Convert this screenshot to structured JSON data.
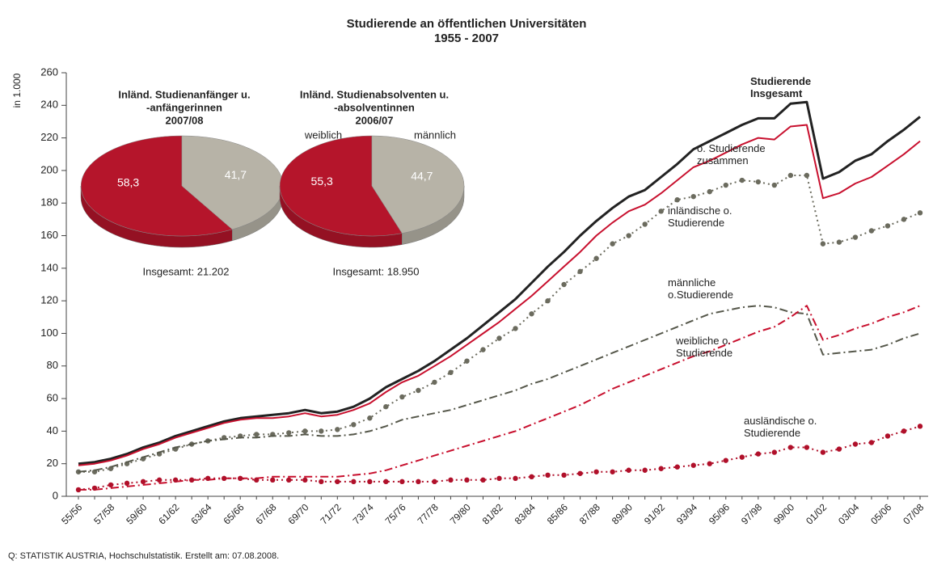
{
  "source": "Q: STATISTIK AUSTRIA, Hochschulstatistik. Erstellt am: 07.08.2008.",
  "chart_data": [
    {
      "type": "line",
      "title": "Studierende an öffentlichen Universitäten",
      "subtitle": "1955 - 2007",
      "y_label": "in 1.000",
      "categories": [
        "55/56",
        null,
        "57/58",
        null,
        "59/60",
        null,
        "61/62",
        null,
        "63/64",
        null,
        "65/66",
        null,
        "67/68",
        null,
        "69/70",
        null,
        "71/72",
        null,
        "73/74",
        null,
        "75/76",
        null,
        "77/78",
        null,
        "79/80",
        null,
        "81/82",
        null,
        "83/84",
        null,
        "85/86",
        null,
        "87/88",
        null,
        "89/90",
        null,
        "91/92",
        null,
        "93/94",
        null,
        "95/96",
        null,
        "97/98",
        null,
        "99/00",
        null,
        "01/02",
        null,
        "03/04",
        null,
        "05/06",
        null,
        "07/08"
      ],
      "ylim": [
        0,
        260
      ],
      "yticks": [
        0,
        20,
        40,
        60,
        80,
        100,
        120,
        140,
        160,
        180,
        200,
        220,
        240,
        260
      ],
      "grid": false,
      "series": [
        {
          "name": "Studierende Insgesamt",
          "color": "#222222",
          "style": "solid",
          "values": [
            20,
            21,
            23,
            26,
            30,
            33,
            37,
            40,
            43,
            46,
            48,
            49,
            50,
            51,
            53,
            51,
            52,
            55,
            60,
            67,
            72,
            77,
            83,
            90,
            97,
            105,
            113,
            121,
            131,
            141,
            150,
            160,
            169,
            177,
            184,
            188,
            196,
            204,
            213,
            218,
            223,
            228,
            232,
            232,
            241,
            242,
            195,
            199,
            206,
            210,
            218,
            225,
            233
          ]
        },
        {
          "name": "o. Studierende zusammen",
          "color": "#c8102e",
          "style": "solid",
          "values": [
            19,
            20,
            22,
            25,
            29,
            32,
            36,
            39,
            42,
            45,
            47,
            48,
            48,
            49,
            51,
            49,
            50,
            53,
            57,
            64,
            70,
            74,
            80,
            86,
            93,
            100,
            107,
            115,
            123,
            132,
            141,
            150,
            160,
            168,
            175,
            179,
            186,
            194,
            202,
            206,
            211,
            216,
            220,
            219,
            227,
            228,
            183,
            186,
            192,
            196,
            203,
            210,
            218
          ]
        },
        {
          "name": "inländische o. Studierende",
          "color": "#6b6b5e",
          "style": "dotted",
          "values": [
            15,
            15,
            17,
            20,
            23,
            26,
            29,
            32,
            34,
            36,
            37,
            38,
            38,
            39,
            40,
            40,
            41,
            44,
            48,
            55,
            61,
            65,
            70,
            76,
            83,
            90,
            97,
            103,
            112,
            120,
            130,
            138,
            146,
            155,
            160,
            167,
            175,
            182,
            184,
            187,
            191,
            194,
            193,
            191,
            197,
            197,
            155,
            156,
            159,
            163,
            166,
            170,
            174
          ]
        },
        {
          "name": "männliche o.Studierende",
          "color": "#55574a",
          "style": "dashdot",
          "values": [
            15,
            16,
            18,
            21,
            24,
            27,
            30,
            32,
            34,
            35,
            36,
            36,
            37,
            37,
            38,
            37,
            37,
            38,
            40,
            43,
            47,
            49,
            51,
            53,
            56,
            59,
            62,
            65,
            69,
            72,
            76,
            80,
            84,
            88,
            92,
            96,
            100,
            104,
            108,
            112,
            114,
            116,
            117,
            116,
            113,
            112,
            87,
            88,
            89,
            90,
            93,
            97,
            100
          ]
        },
        {
          "name": "weibliche o. Studierende",
          "color": "#c8102e",
          "style": "dashdot",
          "values": [
            4,
            4,
            5,
            6,
            7,
            8,
            9,
            10,
            10,
            11,
            11,
            11,
            12,
            12,
            12,
            12,
            12,
            13,
            14,
            16,
            19,
            22,
            25,
            28,
            31,
            34,
            37,
            40,
            44,
            48,
            52,
            56,
            61,
            66,
            70,
            74,
            78,
            82,
            86,
            89,
            93,
            97,
            101,
            104,
            110,
            117,
            96,
            99,
            103,
            106,
            110,
            113,
            117
          ]
        },
        {
          "name": "ausländische o. Studierende",
          "color": "#b0102a",
          "style": "dotted",
          "values": [
            4,
            5,
            7,
            8,
            9,
            10,
            10,
            10,
            11,
            11,
            11,
            10,
            10,
            10,
            10,
            9,
            9,
            9,
            9,
            9,
            9,
            9,
            9,
            10,
            10,
            10,
            11,
            11,
            12,
            13,
            13,
            14,
            15,
            15,
            16,
            16,
            17,
            18,
            19,
            20,
            22,
            24,
            26,
            27,
            30,
            30,
            27,
            29,
            32,
            33,
            37,
            40,
            43
          ]
        }
      ]
    },
    {
      "type": "pie",
      "title": [
        "Inländ. Studienanfänger u.",
        "-anfängerinnen",
        "2007/08"
      ],
      "values": [
        58.3,
        41.7
      ],
      "value_labels": [
        "58,3",
        "41,7"
      ],
      "colors": [
        "#b5152b",
        "#b7b3a7"
      ],
      "total_label": "Insgesamt: 21.202"
    },
    {
      "type": "pie",
      "title": [
        "Inländ. Studienabsolventen u.",
        "-absolventinnen",
        "2006/07"
      ],
      "categories": [
        "weiblich",
        "männlich"
      ],
      "values": [
        55.3,
        44.7
      ],
      "value_labels": [
        "55,3",
        "44,7"
      ],
      "colors": [
        "#b5152b",
        "#b7b3a7"
      ],
      "total_label": "Insgesamt: 18.950"
    }
  ]
}
